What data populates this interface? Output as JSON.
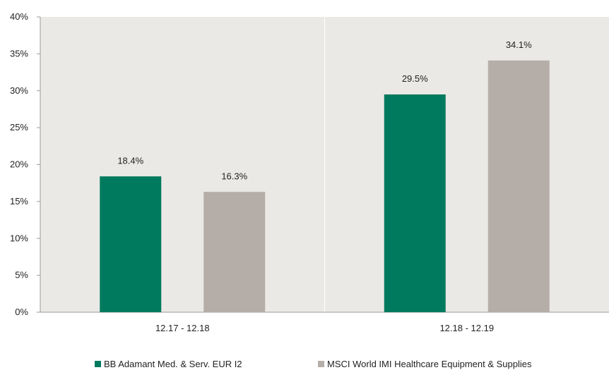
{
  "chart_data": {
    "type": "bar",
    "categories": [
      "12.17 - 12.18",
      "12.18 - 12.19"
    ],
    "series": [
      {
        "name": "BB Adamant Med. & Serv. EUR I2",
        "values": [
          18.4,
          29.5
        ],
        "labels": [
          "18.4%",
          "29.5%"
        ],
        "color": "#007a5e"
      },
      {
        "name": "MSCI World IMI Healthcare Equipment & Supplies",
        "values": [
          16.3,
          34.1
        ],
        "labels": [
          "16.3%",
          "34.1%"
        ],
        "color": "#b5aea8"
      }
    ],
    "ylim": [
      0,
      40
    ],
    "yticks": [
      0,
      5,
      10,
      15,
      20,
      25,
      30,
      35,
      40
    ],
    "ytick_labels": [
      "0%",
      "5%",
      "10%",
      "15%",
      "20%",
      "25%",
      "30%",
      "35%",
      "40%"
    ],
    "legend_position": "bottom",
    "background_color": "#ebe9e5"
  }
}
